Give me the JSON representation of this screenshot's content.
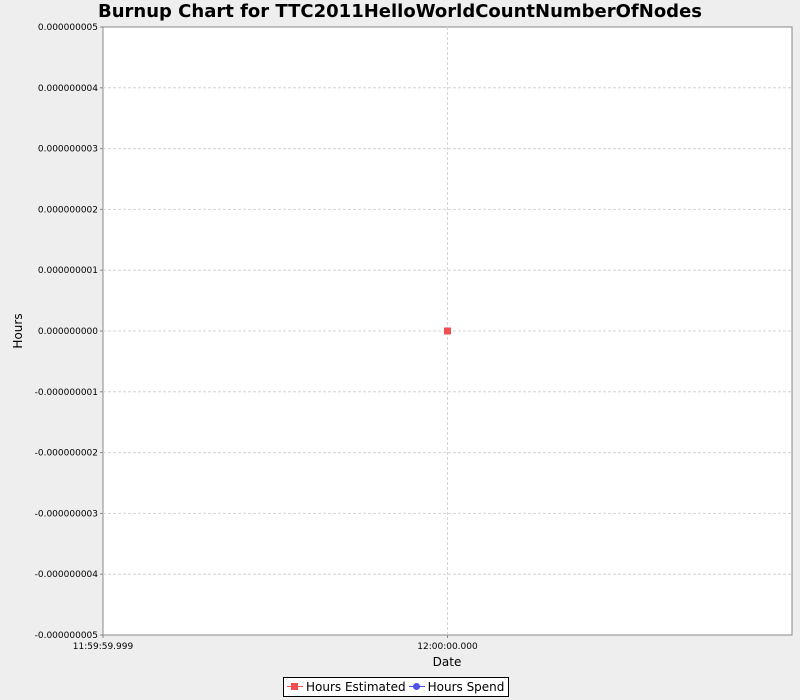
{
  "chart_data": {
    "type": "line",
    "title": "Burnup Chart for TTC2011HelloWorldCountNumberOfNodes",
    "xlabel": "Date",
    "ylabel": "Hours",
    "x_ticks": [
      "11:59:59.999",
      "12:00:00.000"
    ],
    "y_ticks": [
      "0.000000005",
      "0.000000004",
      "0.000000003",
      "0.000000002",
      "0.000000001",
      "0.000000000",
      "-0.000000001",
      "-0.000000002",
      "-0.000000003",
      "-0.000000004",
      "-0.000000005"
    ],
    "ylim": [
      -5e-09,
      5e-09
    ],
    "xlim": [
      "11:59:59.999",
      "12:00:00.001"
    ],
    "grid": true,
    "legend_position": "bottom",
    "series": [
      {
        "name": "Hours Estimated",
        "color": "#f05050",
        "marker": "square",
        "points": [
          {
            "x": "12:00:00.000",
            "y": 0
          }
        ]
      },
      {
        "name": "Hours Spend",
        "color": "#5050f0",
        "marker": "circle",
        "points": []
      }
    ]
  }
}
